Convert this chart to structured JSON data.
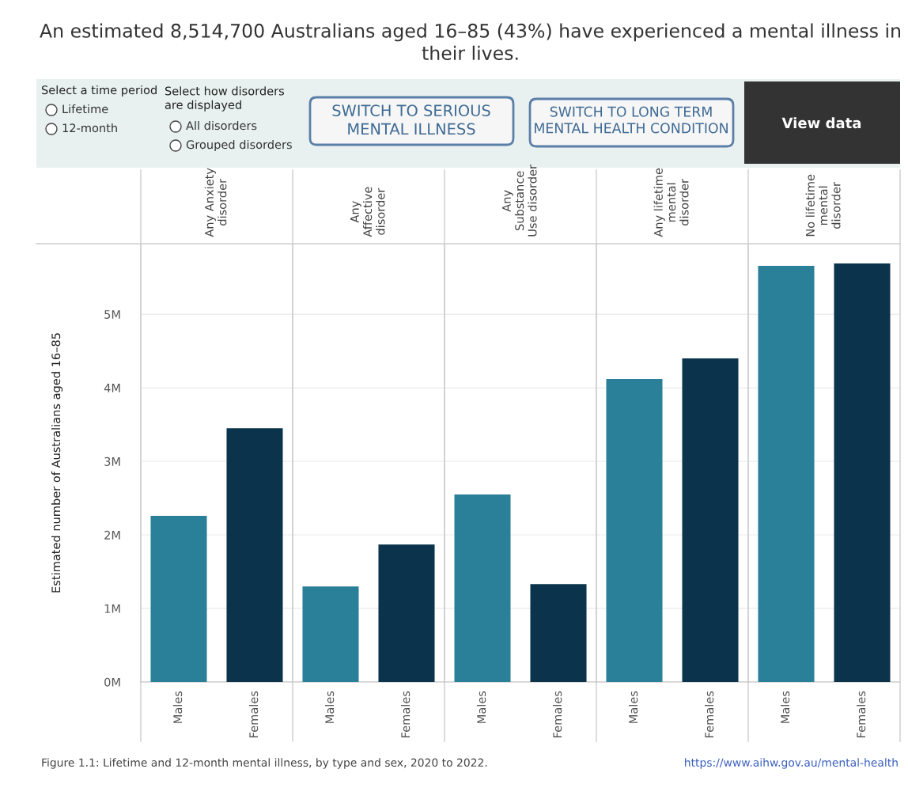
{
  "chart_data": [
    {
      "type": "other",
      "title": "An estimated 8,514,700 Australians aged 16–85 (43%) have experienced a mental illness in\ntheir lives.",
      "annotations": [
        "Select a time period",
        "Lifetime",
        "12-month",
        "Select how disorders\nare displayed",
        "All disorders",
        "Grouped disorders",
        "SWITCH TO SERIOUS\nMENTAL ILLNESS",
        "SWITCH TO LONG TERM\nMENTAL HEALTH CONDITION",
        "View data"
      ]
    },
    {
      "type": "bar",
      "title": "Any Anxiety\ndisorder",
      "ylabel": "Estimated number of Australians aged 16–85",
      "categories": [
        "Males",
        "Females"
      ],
      "values": [
        2.26,
        3.45
      ],
      "colors": [
        "#2a7f99",
        "#0b344c"
      ],
      "ylim": [
        0,
        5.96
      ],
      "yticks": [
        {
          "value": 0,
          "label": "0M"
        },
        {
          "value": 1,
          "label": "1M"
        },
        {
          "value": 2,
          "label": "2M"
        },
        {
          "value": 3,
          "label": "3M"
        },
        {
          "value": 4,
          "label": "4M"
        },
        {
          "value": 5,
          "label": "5M"
        }
      ],
      "grid": "y",
      "annotations": [
        "Figure 1.1: Lifetime and 12-month mental illness, by type and sex, 2020 to 2022.",
        "https://www.aihw.gov.au/mental-health"
      ]
    },
    {
      "type": "bar",
      "title": "Any\nAffective\ndisorder",
      "categories": [
        "Males",
        "Females"
      ],
      "values": [
        1.3,
        1.87
      ],
      "colors": [
        "#2a7f99",
        "#0b344c"
      ],
      "ylim": [
        0,
        5.96
      ],
      "yticks": [
        0,
        1,
        2,
        3,
        4,
        5
      ],
      "grid": "y",
      "tick_labels": "x"
    },
    {
      "type": "bar",
      "title": "Any\nSubstance\nUse disorder",
      "categories": [
        "Males",
        "Females"
      ],
      "values": [
        2.55,
        1.33
      ],
      "colors": [
        "#2a7f99",
        "#0b344c"
      ],
      "ylim": [
        0,
        5.96
      ],
      "yticks": [
        0,
        1,
        2,
        3,
        4,
        5
      ],
      "grid": "y",
      "tick_labels": "x"
    },
    {
      "type": "bar",
      "title": "Any lifetime\nmental\ndisorder",
      "categories": [
        "Males",
        "Females"
      ],
      "values": [
        4.12,
        4.4
      ],
      "colors": [
        "#2a7f99",
        "#0b344c"
      ],
      "ylim": [
        0,
        5.96
      ],
      "yticks": [
        0,
        1,
        2,
        3,
        4,
        5
      ],
      "grid": "y",
      "tick_labels": "x"
    },
    {
      "type": "bar",
      "title": "No lifetime\nmental\ndisorder",
      "categories": [
        "Males",
        "Females"
      ],
      "values": [
        5.66,
        5.69
      ],
      "colors": [
        "#2a7f99",
        "#0b344c"
      ],
      "ylim": [
        0,
        5.96
      ],
      "yticks": [
        0,
        1,
        2,
        3,
        4,
        5
      ],
      "grid": "y",
      "tick_labels": "x"
    }
  ]
}
